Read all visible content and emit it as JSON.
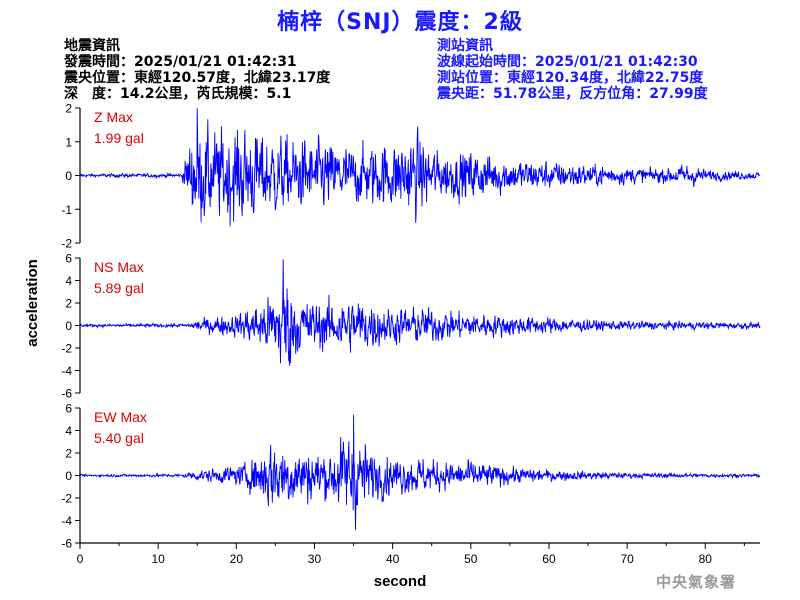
{
  "title": "楠梓（SNJ）震度：2級",
  "quake": {
    "heading": "地震資訊",
    "time": "發震時間：2025/01/21 01:42:31",
    "epicenter": "震央位置：東經120.57度，北緯23.17度",
    "depth_mag": "深　度：14.2公里，芮氏規模：5.1"
  },
  "station": {
    "heading": "測站資訊",
    "wave_start": "波線起始時間：2025/01/21 01:42:30",
    "location": "測站位置：東經120.34度，北緯22.75度",
    "distance": "震央距：51.78公里，反方位角：27.99度"
  },
  "agency": "中央氣象署",
  "colors": {
    "trace": "#0000ff",
    "label": "#e00000",
    "title": "#1a1aff"
  },
  "chart_data": {
    "type": "line",
    "xlabel": "second",
    "ylabel": "acceleration",
    "xlim": [
      0,
      87
    ],
    "xticks": [
      0,
      10,
      20,
      30,
      40,
      50,
      60,
      70,
      80
    ],
    "xtick_labels": [
      "0",
      "10",
      "20",
      "30",
      "40",
      "50",
      "60",
      "70",
      "80"
    ],
    "panels": [
      {
        "component": "Z",
        "label": "Z Max",
        "max_text": "1.99 gal",
        "max_value": 1.99,
        "ylim": [
          -2,
          2
        ],
        "yticks": [
          -2,
          -1,
          0,
          1,
          2
        ],
        "ytick_labels": [
          "-2",
          "-1",
          "0",
          "1",
          "2"
        ],
        "envelope": [
          [
            0,
            0.06
          ],
          [
            13,
            0.07
          ],
          [
            14,
            1.2
          ],
          [
            15,
            1.8
          ],
          [
            17,
            1.6
          ],
          [
            20,
            1.7
          ],
          [
            23,
            1.5
          ],
          [
            27,
            1.3
          ],
          [
            31,
            1.25
          ],
          [
            35,
            1.0
          ],
          [
            40,
            1.2
          ],
          [
            43,
            1.5
          ],
          [
            46,
            0.8
          ],
          [
            50,
            0.9
          ],
          [
            55,
            0.6
          ],
          [
            60,
            0.5
          ],
          [
            65,
            0.4
          ],
          [
            70,
            0.3
          ],
          [
            75,
            0.25
          ],
          [
            78,
            0.45
          ],
          [
            80,
            0.2
          ],
          [
            87,
            0.12
          ]
        ]
      },
      {
        "component": "NS",
        "label": "NS Max",
        "max_text": "5.89 gal",
        "max_value": 5.89,
        "ylim": [
          -6,
          6
        ],
        "yticks": [
          -6,
          -4,
          -2,
          0,
          2,
          4,
          6
        ],
        "ytick_labels": [
          "-6",
          "-4",
          "-2",
          "0",
          "2",
          "4",
          "6"
        ],
        "envelope": [
          [
            0,
            0.15
          ],
          [
            14,
            0.2
          ],
          [
            15,
            0.7
          ],
          [
            17,
            0.9
          ],
          [
            20,
            1.2
          ],
          [
            23,
            2.5
          ],
          [
            25,
            3.5
          ],
          [
            26,
            5.8
          ],
          [
            28,
            3.2
          ],
          [
            30,
            2.6
          ],
          [
            33,
            2.8
          ],
          [
            36,
            3.0
          ],
          [
            40,
            1.8
          ],
          [
            42,
            2.1
          ],
          [
            45,
            1.8
          ],
          [
            50,
            1.4
          ],
          [
            55,
            1.1
          ],
          [
            60,
            0.9
          ],
          [
            65,
            0.6
          ],
          [
            70,
            0.5
          ],
          [
            80,
            0.4
          ],
          [
            87,
            0.3
          ]
        ]
      },
      {
        "component": "EW",
        "label": "EW Max",
        "max_text": "5.40 gal",
        "max_value": 5.4,
        "ylim": [
          -6,
          6
        ],
        "yticks": [
          -6,
          -4,
          -2,
          0,
          2,
          4,
          6
        ],
        "ytick_labels": [
          "-6",
          "-4",
          "-2",
          "0",
          "2",
          "4",
          "6"
        ],
        "envelope": [
          [
            0,
            0.12
          ],
          [
            13,
            0.18
          ],
          [
            15,
            0.6
          ],
          [
            18,
            0.8
          ],
          [
            21,
            1.2
          ],
          [
            23,
            2.6
          ],
          [
            24,
            3.6
          ],
          [
            25,
            4.0
          ],
          [
            28,
            3.0
          ],
          [
            32,
            2.6
          ],
          [
            35,
            5.4
          ],
          [
            37,
            2.8
          ],
          [
            40,
            2.0
          ],
          [
            45,
            1.8
          ],
          [
            48,
            1.3
          ],
          [
            50,
            1.6
          ],
          [
            55,
            0.9
          ],
          [
            60,
            0.6
          ],
          [
            70,
            0.3
          ],
          [
            80,
            0.2
          ],
          [
            87,
            0.15
          ]
        ]
      }
    ]
  }
}
